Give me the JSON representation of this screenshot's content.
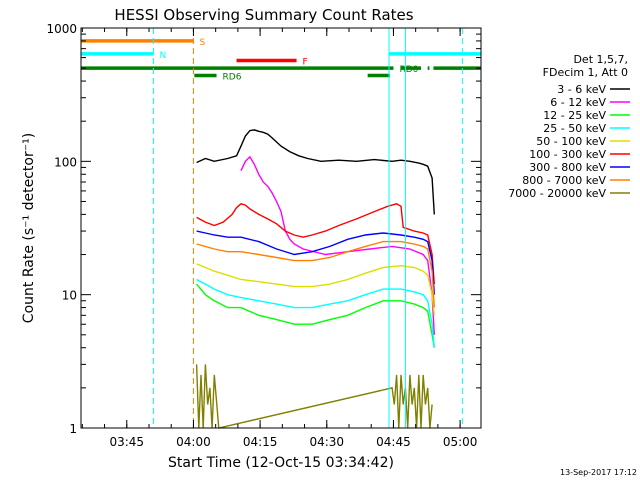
{
  "chart_data": {
    "type": "line",
    "title": "HESSI Observing Summary Count Rates",
    "xlabel": "Start Time (12-Oct-15 03:34:42)",
    "ylabel": "Count Rate (s⁻¹ detector⁻¹)",
    "x_range_minutes": [
      0,
      90
    ],
    "x_ticks": [
      {
        "minute": 10.3,
        "label": "03:45"
      },
      {
        "minute": 25.3,
        "label": "04:00"
      },
      {
        "minute": 40.3,
        "label": "04:15"
      },
      {
        "minute": 55.3,
        "label": "04:30"
      },
      {
        "minute": 70.3,
        "label": "04:45"
      },
      {
        "minute": 85.3,
        "label": "05:00"
      }
    ],
    "y_scale": "log",
    "ylim": [
      1,
      1000
    ],
    "y_ticks": [
      {
        "value": 1,
        "label": "1"
      },
      {
        "value": 10,
        "label": "10"
      },
      {
        "value": 100,
        "label": "100"
      },
      {
        "value": 1000,
        "label": "1000"
      }
    ],
    "legend": {
      "position": "right",
      "header": [
        "Det 1,5,7,",
        "FDecim 1, Att 0"
      ]
    },
    "series": [
      {
        "name": "3 - 6 keV",
        "color": "#000000",
        "points": [
          [
            26,
            98
          ],
          [
            28,
            105
          ],
          [
            30,
            100
          ],
          [
            33,
            105
          ],
          [
            35,
            110
          ],
          [
            36,
            130
          ],
          [
            37,
            155
          ],
          [
            38,
            170
          ],
          [
            39,
            172
          ],
          [
            40,
            168
          ],
          [
            41,
            165
          ],
          [
            42,
            160
          ],
          [
            43,
            150
          ],
          [
            45,
            130
          ],
          [
            47,
            118
          ],
          [
            49,
            110
          ],
          [
            51,
            105
          ],
          [
            54,
            100
          ],
          [
            58,
            102
          ],
          [
            62,
            100
          ],
          [
            66,
            103
          ],
          [
            70,
            100
          ],
          [
            72,
            102
          ],
          [
            74,
            100
          ],
          [
            76,
            97
          ],
          [
            77,
            95
          ],
          [
            78,
            92
          ],
          [
            79,
            75
          ],
          [
            79.5,
            40
          ]
        ]
      },
      {
        "name": "6 - 12 keV",
        "color": "#ff00ff",
        "points": [
          [
            36,
            85
          ],
          [
            37,
            100
          ],
          [
            38,
            108
          ],
          [
            39,
            95
          ],
          [
            40,
            80
          ],
          [
            41,
            70
          ],
          [
            42,
            65
          ],
          [
            43,
            58
          ],
          [
            44,
            50
          ],
          [
            45,
            42
          ],
          [
            46,
            30
          ],
          [
            47,
            26
          ],
          [
            48,
            24
          ],
          [
            50,
            22
          ],
          [
            55,
            20
          ],
          [
            60,
            21
          ],
          [
            65,
            22
          ],
          [
            70,
            23
          ],
          [
            74,
            22
          ],
          [
            77,
            20
          ],
          [
            78,
            18
          ],
          [
            79,
            10
          ],
          [
            79.5,
            5
          ]
        ]
      },
      {
        "name": "12 - 25 keV",
        "color": "#00ff00",
        "points": [
          [
            26,
            12
          ],
          [
            28,
            10
          ],
          [
            30,
            9
          ],
          [
            33,
            8
          ],
          [
            36,
            8
          ],
          [
            40,
            7
          ],
          [
            44,
            6.5
          ],
          [
            48,
            6
          ],
          [
            52,
            6
          ],
          [
            56,
            6.5
          ],
          [
            60,
            7
          ],
          [
            64,
            8
          ],
          [
            68,
            9
          ],
          [
            72,
            9
          ],
          [
            75,
            8.5
          ],
          [
            77,
            8
          ],
          [
            78,
            7.5
          ],
          [
            79,
            5
          ],
          [
            79.5,
            4
          ]
        ]
      },
      {
        "name": "25 - 50 keV",
        "color": "#00ffff",
        "points": [
          [
            26,
            13
          ],
          [
            28,
            12
          ],
          [
            30,
            11
          ],
          [
            33,
            10
          ],
          [
            36,
            9.5
          ],
          [
            40,
            9
          ],
          [
            44,
            8.5
          ],
          [
            48,
            8
          ],
          [
            52,
            8
          ],
          [
            56,
            8.5
          ],
          [
            60,
            9
          ],
          [
            64,
            10
          ],
          [
            68,
            11
          ],
          [
            72,
            11
          ],
          [
            75,
            10.5
          ],
          [
            77,
            10
          ],
          [
            78,
            9
          ],
          [
            79,
            6
          ],
          [
            79.5,
            4
          ]
        ]
      },
      {
        "name": "50 - 100 keV",
        "color": "#dddd00",
        "points": [
          [
            26,
            17
          ],
          [
            28,
            16
          ],
          [
            30,
            15
          ],
          [
            33,
            14
          ],
          [
            36,
            13
          ],
          [
            40,
            12.5
          ],
          [
            44,
            12
          ],
          [
            48,
            11.5
          ],
          [
            52,
            11.5
          ],
          [
            56,
            12
          ],
          [
            60,
            13
          ],
          [
            64,
            14.5
          ],
          [
            68,
            16
          ],
          [
            72,
            16.5
          ],
          [
            75,
            16
          ],
          [
            77,
            15
          ],
          [
            78,
            14
          ],
          [
            79,
            10
          ],
          [
            79.5,
            7
          ]
        ]
      },
      {
        "name": "100 - 300 keV",
        "color": "#ff0000",
        "points": [
          [
            26,
            38
          ],
          [
            28,
            35
          ],
          [
            30,
            33
          ],
          [
            32,
            35
          ],
          [
            34,
            40
          ],
          [
            35,
            45
          ],
          [
            36,
            48
          ],
          [
            37,
            47
          ],
          [
            38,
            44
          ],
          [
            40,
            40
          ],
          [
            42,
            37
          ],
          [
            44,
            34
          ],
          [
            46,
            30
          ],
          [
            48,
            28
          ],
          [
            50,
            27
          ],
          [
            52,
            28
          ],
          [
            55,
            30
          ],
          [
            58,
            33
          ],
          [
            62,
            37
          ],
          [
            66,
            42
          ],
          [
            69,
            46
          ],
          [
            71,
            48
          ],
          [
            72,
            46
          ],
          [
            72.5,
            32
          ],
          [
            75,
            30
          ],
          [
            77,
            29
          ],
          [
            78,
            28
          ],
          [
            79,
            20
          ],
          [
            79.5,
            12
          ]
        ]
      },
      {
        "name": "300 - 800 keV",
        "color": "#0000ff",
        "points": [
          [
            26,
            30
          ],
          [
            28,
            29
          ],
          [
            30,
            28
          ],
          [
            33,
            27
          ],
          [
            36,
            27
          ],
          [
            40,
            25
          ],
          [
            44,
            22
          ],
          [
            48,
            20
          ],
          [
            52,
            21
          ],
          [
            56,
            23
          ],
          [
            60,
            26
          ],
          [
            64,
            28
          ],
          [
            68,
            29
          ],
          [
            72,
            28
          ],
          [
            75,
            27
          ],
          [
            77,
            26
          ],
          [
            78,
            25
          ],
          [
            79,
            18
          ],
          [
            79.5,
            10
          ]
        ]
      },
      {
        "name": "800 - 7000 keV",
        "color": "#ff8000",
        "points": [
          [
            26,
            24
          ],
          [
            28,
            23
          ],
          [
            30,
            22
          ],
          [
            33,
            21
          ],
          [
            36,
            21
          ],
          [
            40,
            20
          ],
          [
            44,
            19
          ],
          [
            48,
            18
          ],
          [
            52,
            18
          ],
          [
            56,
            19
          ],
          [
            60,
            21
          ],
          [
            64,
            23
          ],
          [
            68,
            25
          ],
          [
            72,
            25
          ],
          [
            75,
            24
          ],
          [
            77,
            23
          ],
          [
            78,
            22
          ],
          [
            79,
            15
          ],
          [
            79.5,
            8
          ]
        ]
      },
      {
        "name": "7000 - 20000 keV",
        "color": "#808000",
        "points": [
          [
            26,
            3
          ],
          [
            26.5,
            1
          ],
          [
            27,
            2.5
          ],
          [
            27.5,
            1
          ],
          [
            28,
            3
          ],
          [
            28.5,
            1.5
          ],
          [
            29,
            2
          ],
          [
            29.5,
            1
          ],
          [
            30,
            2.5
          ],
          [
            31,
            1
          ],
          [
            70,
            2
          ],
          [
            70.5,
            1.5
          ],
          [
            71,
            2.5
          ],
          [
            71.5,
            1
          ],
          [
            72,
            2.5
          ],
          [
            72.5,
            1.5
          ],
          [
            73,
            2
          ],
          [
            73.5,
            1
          ],
          [
            74,
            2.5
          ],
          [
            74.5,
            1.5
          ],
          [
            75,
            2
          ],
          [
            75.5,
            1
          ],
          [
            76,
            2.5
          ],
          [
            76.5,
            1
          ],
          [
            77,
            2.5
          ],
          [
            77.5,
            1.5
          ],
          [
            78,
            2
          ],
          [
            78.5,
            1
          ],
          [
            79,
            1.5
          ]
        ]
      }
    ],
    "flag_bars": [
      {
        "label": "S",
        "color": "#ff8000",
        "y": 800,
        "segments": [
          [
            0,
            25.3
          ]
        ]
      },
      {
        "label": "N",
        "color": "#00ffff",
        "y": 640,
        "segments": [
          [
            0,
            16.3
          ],
          [
            69.3,
            90
          ]
        ]
      },
      {
        "label": "F",
        "color": "#ff0000",
        "y": 570,
        "segments": [
          [
            35,
            48.5
          ]
        ]
      },
      {
        "label": "RD0",
        "color": "#008000",
        "y": 500,
        "segments": [
          [
            0,
            70.3
          ],
          [
            72,
            76.5
          ],
          [
            78,
            78.4
          ],
          [
            79.3,
            90
          ]
        ]
      },
      {
        "label": "RD6",
        "color": "#008000",
        "y": 440,
        "segments": [
          [
            25.5,
            30.5
          ],
          [
            64.5,
            69.5
          ]
        ]
      }
    ],
    "vertical_markers": [
      {
        "color": "#00ffff",
        "style": "solid",
        "minute": 0
      },
      {
        "color": "#00ffff",
        "style": "dashed",
        "minute": 16.3
      },
      {
        "color": "#ff8000",
        "style": "dashed",
        "minute": 25.3
      },
      {
        "color": "#00ffff",
        "style": "solid",
        "minute": 69.3
      },
      {
        "color": "#00ffff",
        "style": "solid",
        "minute": 73.0
      },
      {
        "color": "#00ffff",
        "style": "dashed",
        "minute": 85.8
      }
    ]
  },
  "footer_date": "13-Sep-2017 17:12"
}
